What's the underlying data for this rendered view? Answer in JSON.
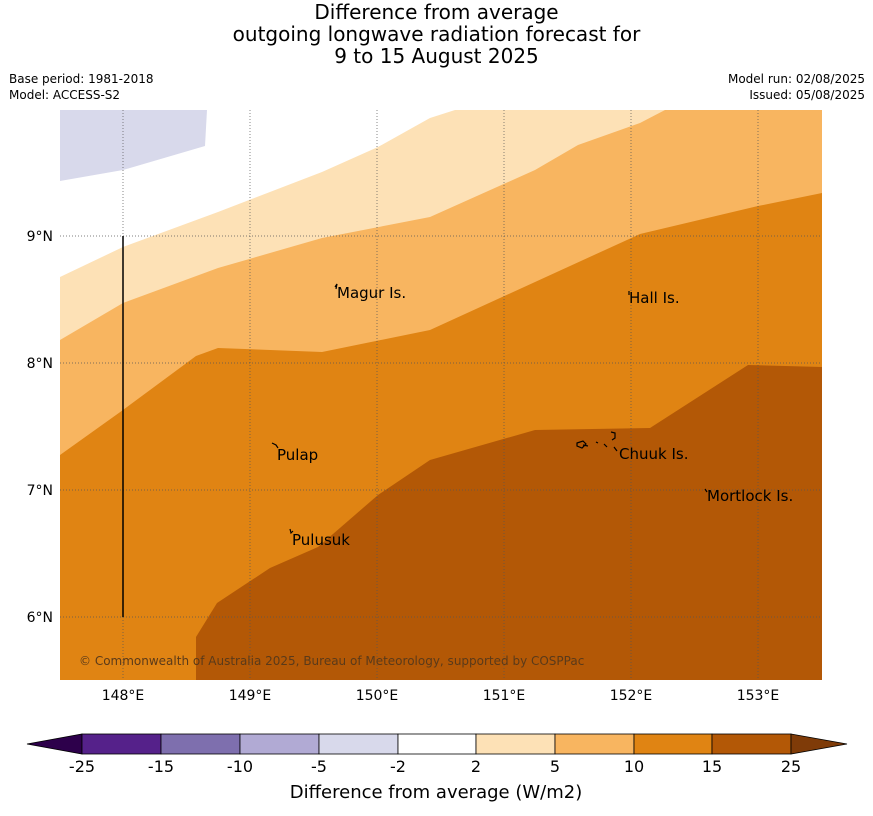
{
  "title": {
    "line1": "Difference from average",
    "line2": "outgoing longwave radiation forecast for",
    "line3": "9 to 15 August 2025"
  },
  "meta": {
    "base_period": "Base period: 1981-2018",
    "model": "Model: ACCESS-S2",
    "model_run": "Model run: 02/08/2025",
    "issued": "Issued: 05/08/2025"
  },
  "map": {
    "lon_labels": [
      "148°E",
      "149°E",
      "150°E",
      "151°E",
      "152°E",
      "153°E"
    ],
    "lat_labels": [
      "9°N",
      "8°N",
      "7°N",
      "6°N"
    ],
    "places": [
      {
        "name": "Magur Is."
      },
      {
        "name": "Hall Is."
      },
      {
        "name": "Pulap"
      },
      {
        "name": "Chuuk Is."
      },
      {
        "name": "Mortlock Is."
      },
      {
        "name": "Pulusuk"
      }
    ],
    "copyright": "© Commonwealth of Australia 2025, Bureau of Meteorology, supported by COSPPac"
  },
  "colorbar": {
    "ticks": [
      "-25",
      "-15",
      "-10",
      "-5",
      "-2",
      "2",
      "5",
      "10",
      "15",
      "25"
    ],
    "colors": [
      "#55218a",
      "#7e6fae",
      "#b1aad4",
      "#d8d9eb",
      "#ffffff",
      "#fde1b6",
      "#f8b560",
      "#e08413",
      "#b35806",
      "#7f3b08",
      "#2d004b"
    ],
    "label": "Difference from average (W/m2)"
  }
}
